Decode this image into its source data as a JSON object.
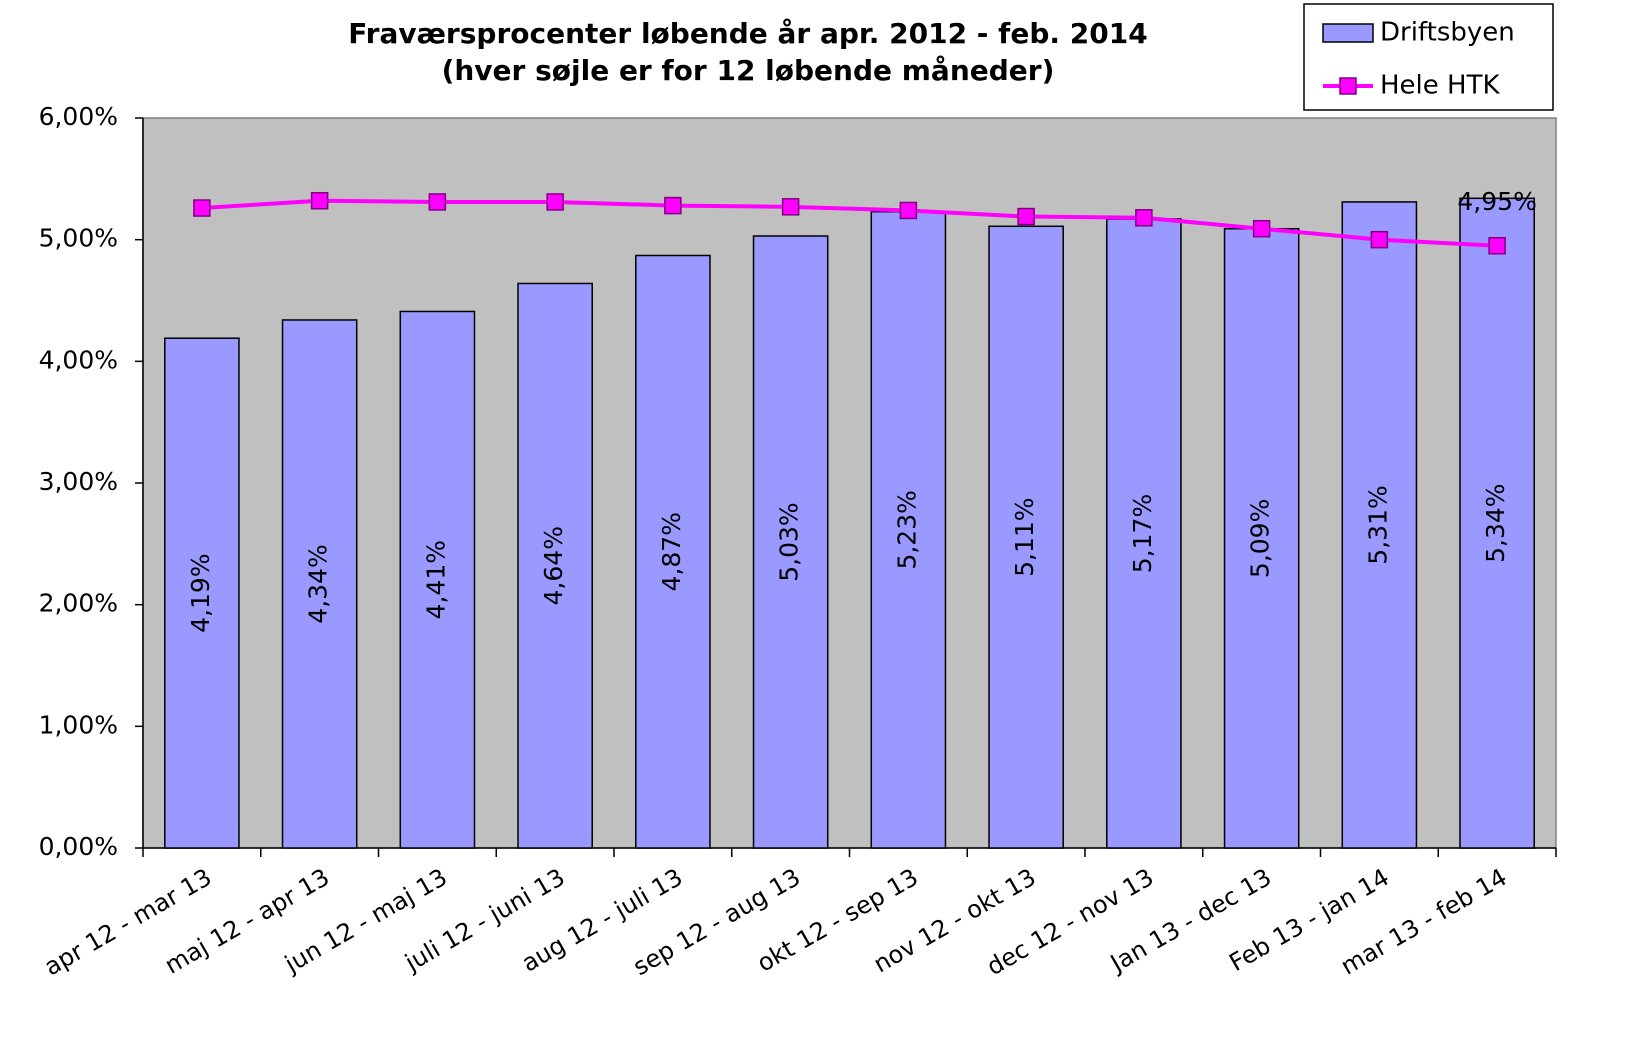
{
  "chart_data": {
    "type": "bar",
    "title": "Fraværsprocenter løbende år apr. 2012 - feb. 2014",
    "subtitle": "(hver søjle er for 12 løbende måneder)",
    "categories": [
      "apr 12 - mar 13",
      "maj 12 - apr 13",
      "jun 12 - maj 13",
      "juli 12 - juni 13",
      "aug 12 - juli 13",
      "sep 12 - aug 13",
      "okt 12 - sep 13",
      "nov 12 - okt 13",
      "dec 12 - nov 13",
      "Jan 13 - dec 13",
      "Feb 13 - jan 14",
      "mar 13 - feb 14"
    ],
    "series": [
      {
        "name": "Driftsbyen",
        "type": "bar",
        "color": "#9999ff",
        "values": [
          4.19,
          4.34,
          4.41,
          4.64,
          4.87,
          5.03,
          5.23,
          5.11,
          5.17,
          5.09,
          5.31,
          5.34
        ],
        "value_labels": [
          "4,19%",
          "4,34%",
          "4,41%",
          "4,64%",
          "4,87%",
          "5,03%",
          "5,23%",
          "5,11%",
          "5,17%",
          "5,09%",
          "5,31%",
          "5,34%"
        ]
      },
      {
        "name": "Hele HTK",
        "type": "line",
        "color": "#ff00ff",
        "values": [
          5.26,
          5.32,
          5.31,
          5.31,
          5.28,
          5.27,
          5.24,
          5.19,
          5.18,
          5.09,
          5.0,
          4.95
        ],
        "value_labels": [
          null,
          null,
          null,
          null,
          null,
          null,
          null,
          null,
          null,
          null,
          null,
          "4,95%"
        ]
      }
    ],
    "ylim": [
      0,
      6
    ],
    "yticks": [
      {
        "value": 0,
        "label": "0,00%"
      },
      {
        "value": 1,
        "label": "1,00%"
      },
      {
        "value": 2,
        "label": "2,00%"
      },
      {
        "value": 3,
        "label": "3,00%"
      },
      {
        "value": 4,
        "label": "4,00%"
      },
      {
        "value": 5,
        "label": "5,00%"
      },
      {
        "value": 6,
        "label": "6,00%"
      }
    ],
    "grid": false,
    "legend": "top-right"
  }
}
